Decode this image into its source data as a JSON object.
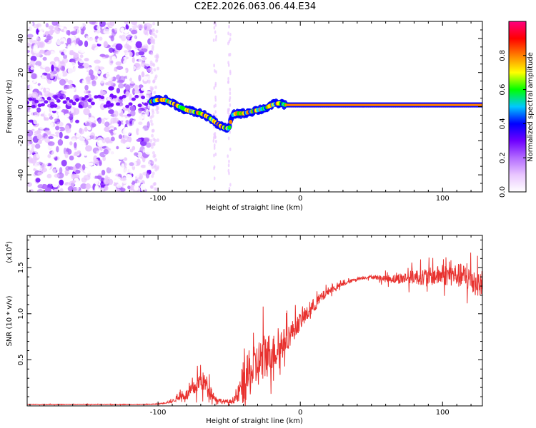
{
  "title": "C2E2.2026.063.06.44.E34",
  "chart_data": [
    {
      "type": "heatmap",
      "name": "spectrogram",
      "xlabel": "Height of straight line (km)",
      "ylabel": "Frequency (Hz)",
      "xlim": [
        -192,
        128
      ],
      "ylim": [
        -50,
        50
      ],
      "x_ticks": [
        -100,
        0,
        100
      ],
      "x_tick_labels": [
        "-100",
        "0",
        "100"
      ],
      "y_ticks": [
        40,
        20,
        0,
        -20,
        -40
      ],
      "y_tick_labels": [
        "40",
        "20",
        "0",
        "-20",
        "-40"
      ],
      "ridge": {
        "x": [
          -105,
          -100,
          -95,
          -90,
          -85,
          -80,
          -75,
          -70,
          -65,
          -60,
          -55,
          -50,
          -48,
          -45,
          -40,
          -35,
          -30,
          -25,
          -20,
          -15,
          -10,
          0,
          20,
          50,
          80,
          110,
          128
        ],
        "y": [
          3,
          4,
          4,
          2,
          0,
          -2,
          -3,
          -4,
          -6,
          -9,
          -12,
          -13,
          -5,
          -4,
          -4,
          -3,
          -2,
          -1,
          1,
          2,
          1,
          1,
          1,
          1,
          1,
          1,
          1
        ]
      },
      "colorbar": {
        "label": "Normalized spectral amplitude",
        "range": [
          0,
          1
        ],
        "ticks": [
          0.0,
          0.2,
          0.4,
          0.6,
          0.8
        ],
        "tick_labels": [
          "0.0",
          "0.2",
          "0.4",
          "0.6",
          "0.8"
        ],
        "colors": [
          "#ffffff",
          "#e9c6ff",
          "#b36bff",
          "#6f00ff",
          "#0000ff",
          "#00c8ff",
          "#00ff00",
          "#ffff00",
          "#ff8000",
          "#ff0000",
          "#ff0080"
        ]
      }
    },
    {
      "type": "line",
      "name": "snr",
      "xlabel": "Height of straight line (km)",
      "ylabel": "SNR (10 * v/v)",
      "y_multiplier_label": "(x10",
      "y_multiplier_exp": "4",
      "y_multiplier_close": ")",
      "xlim": [
        -192,
        128
      ],
      "ylim": [
        0,
        1.85
      ],
      "x_ticks": [
        -100,
        0,
        100
      ],
      "x_tick_labels": [
        "-100",
        "0",
        "100"
      ],
      "y_ticks": [
        0.5,
        1.0,
        1.5
      ],
      "y_tick_labels": [
        "0.5",
        "1.0",
        "1.5"
      ],
      "line_color": "#e8322f",
      "envelope": {
        "x": [
          -192,
          -110,
          -100,
          -90,
          -85,
          -80,
          -75,
          -70,
          -65,
          -60,
          -55,
          -50,
          -45,
          -40,
          -35,
          -30,
          -25,
          -20,
          -15,
          -10,
          -5,
          0,
          5,
          10,
          20,
          30,
          40,
          50,
          60,
          70,
          80,
          90,
          100,
          110,
          120,
          128
        ],
        "y": [
          0.015,
          0.015,
          0.02,
          0.05,
          0.1,
          0.12,
          0.18,
          0.28,
          0.22,
          0.08,
          0.05,
          0.04,
          0.08,
          0.25,
          0.35,
          0.45,
          0.55,
          0.58,
          0.62,
          0.72,
          0.82,
          0.92,
          1.0,
          1.1,
          1.25,
          1.32,
          1.38,
          1.4,
          1.38,
          1.38,
          1.4,
          1.4,
          1.42,
          1.42,
          1.38,
          1.3
        ],
        "noise": [
          0.004,
          0.004,
          0.006,
          0.02,
          0.05,
          0.07,
          0.1,
          0.14,
          0.12,
          0.04,
          0.03,
          0.03,
          0.06,
          0.3,
          0.3,
          0.32,
          0.35,
          0.25,
          0.22,
          0.18,
          0.15,
          0.12,
          0.1,
          0.1,
          0.05,
          0.03,
          0.02,
          0.02,
          0.05,
          0.07,
          0.1,
          0.12,
          0.14,
          0.16,
          0.2,
          0.15
        ]
      }
    }
  ]
}
